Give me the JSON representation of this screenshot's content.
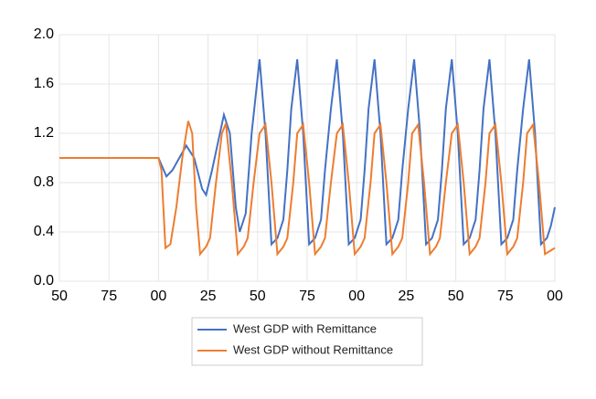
{
  "chart_data": {
    "type": "line",
    "xlim": [
      0,
      250
    ],
    "xticks": [
      {
        "value": 0,
        "label": "50"
      },
      {
        "value": 25,
        "label": "75"
      },
      {
        "value": 50,
        "label": "00"
      },
      {
        "value": 75,
        "label": "25"
      },
      {
        "value": 100,
        "label": "50"
      },
      {
        "value": 125,
        "label": "75"
      },
      {
        "value": 150,
        "label": "00"
      },
      {
        "value": 175,
        "label": "25"
      },
      {
        "value": 200,
        "label": "50"
      },
      {
        "value": 225,
        "label": "75"
      },
      {
        "value": 250,
        "label": "00"
      }
    ],
    "ylim": [
      0,
      2
    ],
    "yticks": [
      {
        "value": 0,
        "label": "0.0"
      },
      0.4,
      0.8,
      1.2,
      1.6,
      {
        "value": 2,
        "label": "2.0"
      }
    ],
    "grid": true,
    "legend": "bottom",
    "series": [
      {
        "name": "West GDP with Remittance",
        "color": "#4472c4",
        "x": [
          0,
          50,
          54,
          57,
          64,
          68,
          72,
          74,
          77,
          83,
          86,
          89,
          91,
          94,
          97,
          101,
          104,
          107,
          110,
          113,
          115,
          117,
          120,
          123,
          126,
          129,
          132,
          134,
          137,
          140,
          143,
          146,
          149,
          152,
          154,
          156,
          159,
          162,
          165,
          168,
          171,
          173,
          176,
          179,
          182,
          185,
          188,
          191,
          193,
          195,
          198,
          201,
          204,
          207,
          210,
          212,
          214,
          217,
          220,
          223,
          226,
          229,
          231,
          234,
          237,
          240,
          243,
          246,
          248,
          250
        ],
        "values": [
          1.0,
          1.0,
          0.85,
          0.9,
          1.1,
          1.0,
          0.75,
          0.7,
          0.9,
          1.35,
          1.2,
          0.6,
          0.4,
          0.55,
          1.2,
          1.8,
          1.2,
          0.3,
          0.35,
          0.5,
          0.9,
          1.4,
          1.8,
          1.2,
          0.3,
          0.35,
          0.5,
          0.9,
          1.4,
          1.8,
          1.2,
          0.3,
          0.35,
          0.5,
          0.9,
          1.4,
          1.8,
          1.2,
          0.3,
          0.35,
          0.5,
          0.9,
          1.4,
          1.8,
          1.2,
          0.3,
          0.35,
          0.5,
          0.9,
          1.4,
          1.8,
          1.2,
          0.3,
          0.35,
          0.5,
          0.9,
          1.4,
          1.8,
          1.2,
          0.3,
          0.35,
          0.5,
          0.9,
          1.4,
          1.8,
          1.2,
          0.3,
          0.35,
          0.45,
          0.6
        ]
      },
      {
        "name": "West GDP without Remittance",
        "color": "#ed7d31",
        "x": [
          0,
          50,
          51.5,
          53.5,
          56,
          59,
          62,
          65,
          67,
          69,
          71,
          74,
          76,
          79,
          82,
          84,
          87,
          90,
          93,
          95,
          98,
          101,
          104,
          107,
          110,
          113,
          115,
          118,
          120,
          123,
          126,
          129,
          132,
          134,
          137,
          140,
          143,
          146,
          149,
          152,
          154,
          157,
          159,
          162,
          165,
          168,
          171,
          173,
          176,
          178,
          181,
          184,
          187,
          190,
          192,
          195,
          198,
          201,
          204,
          207,
          210,
          212,
          215,
          217,
          220,
          223,
          226,
          229,
          231,
          234,
          236,
          239,
          242,
          245,
          248,
          250
        ],
        "values": [
          1.0,
          1.0,
          0.9,
          0.27,
          0.3,
          0.6,
          1.0,
          1.3,
          1.2,
          0.6,
          0.22,
          0.28,
          0.35,
          0.8,
          1.2,
          1.28,
          0.8,
          0.22,
          0.28,
          0.35,
          0.8,
          1.2,
          1.27,
          0.8,
          0.22,
          0.28,
          0.35,
          0.8,
          1.2,
          1.27,
          0.8,
          0.22,
          0.28,
          0.35,
          0.8,
          1.2,
          1.27,
          0.8,
          0.22,
          0.28,
          0.35,
          0.8,
          1.2,
          1.27,
          0.8,
          0.22,
          0.28,
          0.35,
          0.8,
          1.2,
          1.27,
          0.8,
          0.22,
          0.28,
          0.35,
          0.8,
          1.2,
          1.27,
          0.8,
          0.22,
          0.28,
          0.35,
          0.8,
          1.2,
          1.27,
          0.8,
          0.22,
          0.28,
          0.35,
          0.8,
          1.2,
          1.27,
          0.8,
          0.22,
          0.25,
          0.27
        ]
      }
    ]
  }
}
